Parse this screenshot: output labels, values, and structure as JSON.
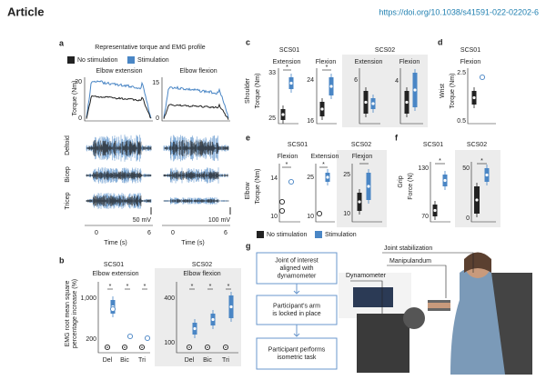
{
  "header": {
    "label": "Article",
    "doi": "https://doi.org/10.1038/s41591-022-02202-6"
  },
  "a": {
    "letter": "a",
    "title": "Representative torque and EMG profile",
    "legend": [
      "No stimulation",
      "Stimulation"
    ],
    "columns": [
      "Elbow extension",
      "Elbow flexion"
    ],
    "torque_label": "Torque (Nm)",
    "rows": [
      "Deltoid",
      "Bicep",
      "Tricep"
    ],
    "torque_ticks": [
      [
        "20",
        "0"
      ],
      [
        "15",
        "0"
      ]
    ],
    "scales": [
      "50 mV",
      "100 mV"
    ],
    "time_ticks": [
      [
        "0",
        "6"
      ],
      [
        "0",
        "6"
      ]
    ],
    "time_label": [
      "Time (s)",
      "Time (s)"
    ]
  },
  "b": {
    "letter": "b",
    "participants": [
      "SCS01",
      "SCS02"
    ],
    "movements": [
      "Elbow extension",
      "Elbow flexion"
    ],
    "ylabel": [
      "EMG root mean square",
      "percentage increase (%)"
    ],
    "ticks": [
      [
        "1,000",
        "200"
      ],
      [
        "400",
        "100"
      ]
    ],
    "muscles": [
      [
        "Del",
        "Bic",
        "Tri"
      ],
      [
        "Del",
        "Bic",
        "Tri"
      ]
    ]
  },
  "c": {
    "letter": "c",
    "participants": [
      "SCS01",
      "SCS02"
    ],
    "joint": "Shoulder",
    "ylabel": "Torque (Nm)",
    "tasks": [
      "Extension",
      "Flexion",
      "Extension",
      "Flexion"
    ],
    "ticks": [
      [
        "33",
        "25"
      ],
      [
        "24",
        "16"
      ],
      [
        "6"
      ],
      [
        "4"
      ]
    ]
  },
  "d": {
    "letter": "d",
    "participant": "SCS01",
    "task": "Flexion",
    "joint": "Wrist",
    "ylabel": "Torque (Nm)",
    "ticks": [
      "2.5",
      "0.5"
    ]
  },
  "e": {
    "letter": "e",
    "participants": [
      "SCS01",
      "SCS02"
    ],
    "joint": "Elbow",
    "ylabel": "Torque (Nm)",
    "tasks": [
      "Flexion",
      "Extension",
      "Flexion"
    ],
    "ticks": [
      [
        "14",
        "10"
      ],
      [
        "25",
        "10"
      ],
      [
        "25",
        "10"
      ]
    ]
  },
  "f": {
    "letter": "f",
    "participants": [
      "SCS01",
      "SCS02"
    ],
    "joint": "Grip",
    "ylabel": "Force (N)",
    "ticks": [
      [
        "130",
        "70"
      ],
      [
        "50",
        "0"
      ]
    ]
  },
  "legend": [
    "No stimulation",
    "Stimulation"
  ],
  "g": {
    "letter": "g",
    "steps": [
      "Joint of interest|aligned with|dynamometer",
      "Participant's arm|is locked in place",
      "Participant performs|isometric task"
    ],
    "labels": [
      "Joint stabilization",
      "Manipulandum",
      "Dynamometer"
    ]
  }
}
